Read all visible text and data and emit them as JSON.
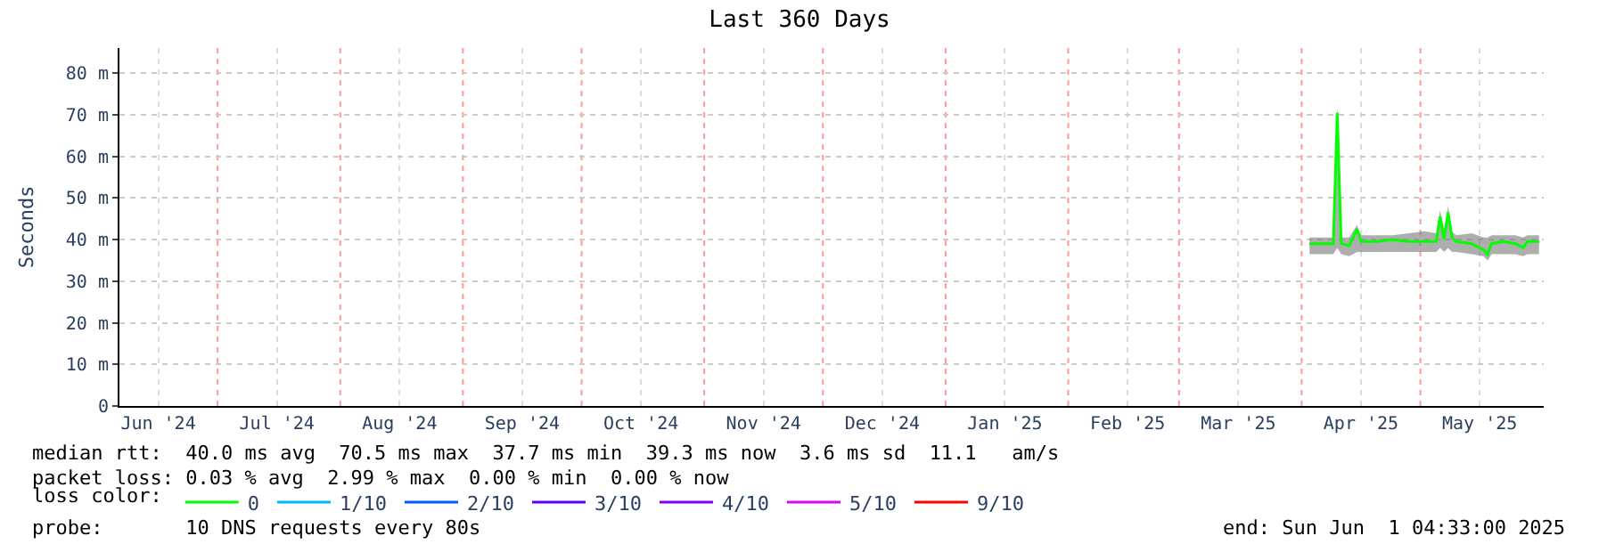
{
  "chart_data": {
    "type": "line",
    "title": "Last 360 Days",
    "ylabel": "Seconds",
    "xlim": [
      "2024-06-06T04:33",
      "2025-06-01T04:33"
    ],
    "xticks": [
      {
        "value": "2024-06-16",
        "label": "Jun '24"
      },
      {
        "value": "2024-07-16",
        "label": "Jul '24"
      },
      {
        "value": "2024-08-16",
        "label": "Aug '24"
      },
      {
        "value": "2024-09-16",
        "label": "Sep '24"
      },
      {
        "value": "2024-10-16",
        "label": "Oct '24"
      },
      {
        "value": "2024-11-16",
        "label": "Nov '24"
      },
      {
        "value": "2024-12-16",
        "label": "Dec '24"
      },
      {
        "value": "2025-01-16",
        "label": "Jan '25"
      },
      {
        "value": "2025-02-16",
        "label": "Feb '25"
      },
      {
        "value": "2025-03-16",
        "label": "Mar '25"
      },
      {
        "value": "2025-04-16",
        "label": "Apr '25"
      },
      {
        "value": "2025-05-16",
        "label": "May '25"
      }
    ],
    "ylim": [
      0,
      86
    ],
    "yticks": [
      0,
      {
        "value": 10,
        "label": "10 m"
      },
      {
        "value": 20,
        "label": "20 m"
      },
      {
        "value": 30,
        "label": "30 m"
      },
      {
        "value": 40,
        "label": "40 m"
      },
      {
        "value": 50,
        "label": "50 m"
      },
      {
        "value": 60,
        "label": "60 m"
      },
      {
        "value": 70,
        "label": "70 m"
      },
      {
        "value": 80,
        "label": "80 m"
      }
    ],
    "grid": true,
    "legend": "bottom",
    "legend_title": "loss color:",
    "marker": "none",
    "line_style": "solid",
    "ref_lines": [
      {
        "axis": "x",
        "value": "2024-07-01",
        "color": "#ff9999",
        "line_style": "dotted"
      },
      {
        "axis": "x",
        "value": "2024-08-01",
        "color": "#ff9999",
        "line_style": "dotted"
      },
      {
        "axis": "x",
        "value": "2024-09-01",
        "color": "#ff9999",
        "line_style": "dotted"
      },
      {
        "axis": "x",
        "value": "2024-10-01",
        "color": "#ff9999",
        "line_style": "dotted"
      },
      {
        "axis": "x",
        "value": "2024-11-01",
        "color": "#ff9999",
        "line_style": "dotted"
      },
      {
        "axis": "x",
        "value": "2024-12-01",
        "color": "#ff9999",
        "line_style": "dotted"
      },
      {
        "axis": "x",
        "value": "2025-01-01",
        "color": "#ff9999",
        "line_style": "dotted"
      },
      {
        "axis": "x",
        "value": "2025-02-01",
        "color": "#ff9999",
        "line_style": "dotted"
      },
      {
        "axis": "x",
        "value": "2025-03-01",
        "color": "#ff9999",
        "line_style": "dotted"
      },
      {
        "axis": "x",
        "value": "2025-04-01",
        "color": "#ff9999",
        "line_style": "dotted"
      },
      {
        "axis": "x",
        "value": "2025-05-01",
        "color": "#ff9999",
        "line_style": "dotted"
      }
    ],
    "series": [
      {
        "name": "0",
        "color": "#00ff00",
        "x": [
          "2025-04-03",
          "2025-04-06",
          "2025-04-09",
          "2025-04-10",
          "2025-04-11",
          "2025-04-13",
          "2025-04-15",
          "2025-04-16",
          "2025-04-20",
          "2025-04-24",
          "2025-04-28",
          "2025-05-02",
          "2025-05-05",
          "2025-05-06",
          "2025-05-07",
          "2025-05-08",
          "2025-05-09",
          "2025-05-10",
          "2025-05-14",
          "2025-05-17",
          "2025-05-18",
          "2025-05-19",
          "2025-05-22",
          "2025-05-25",
          "2025-05-27",
          "2025-05-28",
          "2025-05-31"
        ],
        "values": [
          39,
          39,
          39,
          70.5,
          39,
          38.5,
          42.5,
          39.5,
          39.5,
          40,
          39.5,
          39.5,
          39.5,
          45.5,
          40,
          46.5,
          40.5,
          39.5,
          39,
          37.5,
          36.5,
          39,
          39.5,
          39,
          38,
          39.5,
          39.5
        ],
        "lower": [
          36.5,
          36.5,
          36.5,
          38,
          36.5,
          36,
          37,
          37,
          37,
          37,
          37,
          37,
          37,
          38,
          37,
          38,
          37,
          37,
          36.5,
          36,
          35,
          36.5,
          36.5,
          36.5,
          36,
          36.5,
          36.5
        ],
        "upper": [
          40.5,
          40.5,
          40.5,
          72,
          40.5,
          40.5,
          43.5,
          41,
          41,
          41,
          41.5,
          42,
          41.5,
          47,
          42,
          48,
          42,
          41,
          41.5,
          40.5,
          40.5,
          41,
          41,
          41,
          40.5,
          41,
          41
        ]
      },
      {
        "name": "1/10",
        "color": "#00b8ff",
        "values": [
          null
        ]
      },
      {
        "name": "2/10",
        "color": "#0059ff",
        "values": [
          null
        ]
      },
      {
        "name": "3/10",
        "color": "#5e00ff",
        "values": [
          null
        ]
      },
      {
        "name": "4/10",
        "color": "#7e00ff",
        "values": [
          null
        ]
      },
      {
        "name": "5/10",
        "color": "#dd00ff",
        "values": [
          null
        ]
      },
      {
        "name": "9/10",
        "color": "#ff0000",
        "values": [
          null
        ]
      }
    ],
    "annotations": [
      "median rtt:  40.0 ms avg  70.5 ms max  37.7 ms min  39.3 ms now  3.6 ms sd  11.1   am/s",
      "packet loss: 0.03 % avg  2.99 % max  0.00 % min  0.00 % now",
      "probe:       10 DNS requests every 80s",
      "end: Sun Jun  1 04:33:00 2025"
    ]
  }
}
